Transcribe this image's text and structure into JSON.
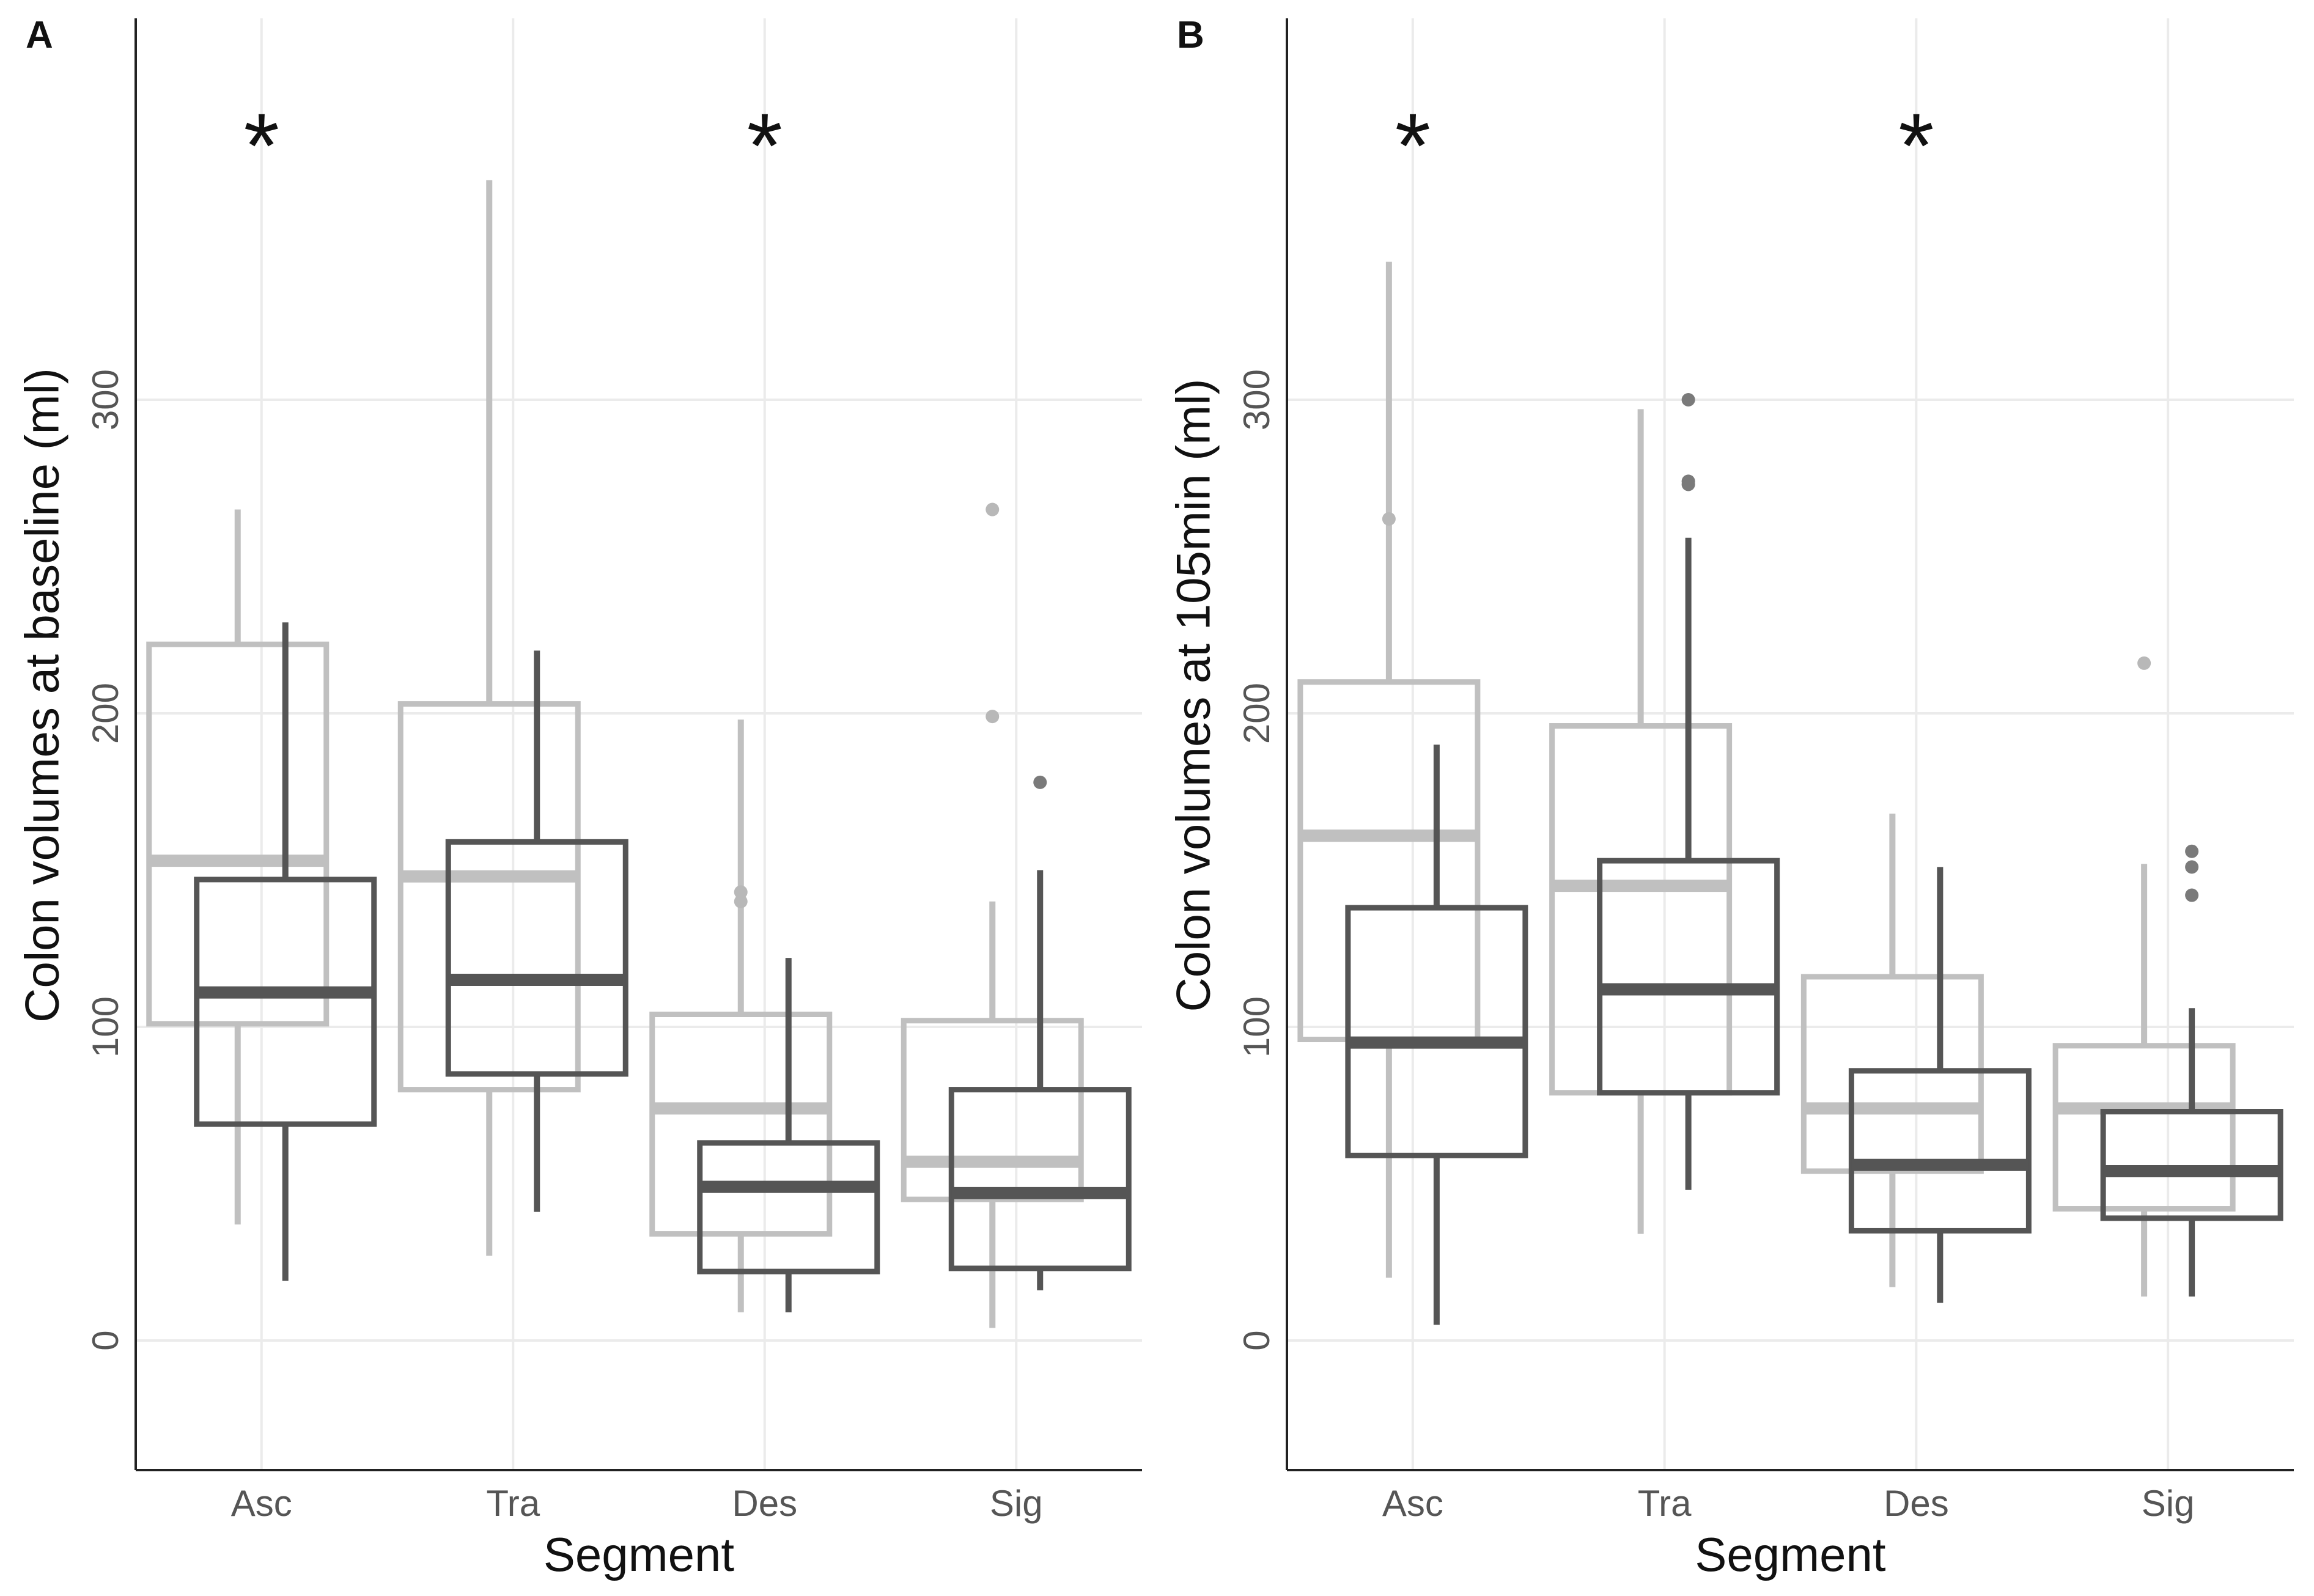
{
  "chart_data": [
    {
      "type": "box",
      "panel_label": "A",
      "xlabel": "Segment",
      "ylabel": "Colon volumes at baseline (ml)",
      "categories": [
        "Asc",
        "Tra",
        "Des",
        "Sig"
      ],
      "yticks": [
        0,
        100,
        200,
        300
      ],
      "ylim": [
        -40,
        420
      ],
      "grid": true,
      "significance": [
        "*",
        "",
        "*",
        ""
      ],
      "series": [
        {
          "color": "#c0c0c0",
          "boxes": [
            {
              "whisker_low": 37,
              "q1": 101,
              "median": 153,
              "q3": 222,
              "whisker_high": 265,
              "outliers": []
            },
            {
              "whisker_low": 27,
              "q1": 80,
              "median": 148,
              "q3": 203,
              "whisker_high": 370,
              "outliers": []
            },
            {
              "whisker_low": 9,
              "q1": 34,
              "median": 74,
              "q3": 104,
              "whisker_high": 198,
              "outliers": [
                143,
                140
              ]
            },
            {
              "whisker_low": 4,
              "q1": 45,
              "median": 57,
              "q3": 102,
              "whisker_high": 140,
              "outliers": [
                265,
                199
              ]
            }
          ]
        },
        {
          "color": "#555555",
          "boxes": [
            {
              "whisker_low": 19,
              "q1": 69,
              "median": 111,
              "q3": 147,
              "whisker_high": 229,
              "outliers": []
            },
            {
              "whisker_low": 41,
              "q1": 85,
              "median": 115,
              "q3": 159,
              "whisker_high": 220,
              "outliers": []
            },
            {
              "whisker_low": 9,
              "q1": 22,
              "median": 49,
              "q3": 63,
              "whisker_high": 122,
              "outliers": []
            },
            {
              "whisker_low": 16,
              "q1": 23,
              "median": 47,
              "q3": 80,
              "whisker_high": 150,
              "outliers": [
                178
              ]
            }
          ]
        }
      ]
    },
    {
      "type": "box",
      "panel_label": "B",
      "xlabel": "Segment",
      "ylabel": "Colon volumes at 105min (ml)",
      "categories": [
        "Asc",
        "Tra",
        "Des",
        "Sig"
      ],
      "yticks": [
        0,
        100,
        200,
        300
      ],
      "ylim": [
        -40,
        420
      ],
      "grid": true,
      "significance": [
        "*",
        "",
        "*",
        ""
      ],
      "series": [
        {
          "color": "#c0c0c0",
          "boxes": [
            {
              "whisker_low": 20,
              "q1": 96,
              "median": 161,
              "q3": 210,
              "whisker_high": 344,
              "outliers": [
                262
              ]
            },
            {
              "whisker_low": 34,
              "q1": 79,
              "median": 145,
              "q3": 196,
              "whisker_high": 297,
              "outliers": []
            },
            {
              "whisker_low": 17,
              "q1": 54,
              "median": 74,
              "q3": 116,
              "whisker_high": 168,
              "outliers": []
            },
            {
              "whisker_low": 14,
              "q1": 42,
              "median": 74,
              "q3": 94,
              "whisker_high": 152,
              "outliers": [
                216
              ]
            }
          ]
        },
        {
          "color": "#555555",
          "boxes": [
            {
              "whisker_low": 5,
              "q1": 59,
              "median": 95,
              "q3": 138,
              "whisker_high": 190,
              "outliers": []
            },
            {
              "whisker_low": 48,
              "q1": 79,
              "median": 112,
              "q3": 153,
              "whisker_high": 256,
              "outliers": [
                300,
                274,
                273
              ]
            },
            {
              "whisker_low": 12,
              "q1": 35,
              "median": 56,
              "q3": 86,
              "whisker_high": 151,
              "outliers": []
            },
            {
              "whisker_low": 14,
              "q1": 39,
              "median": 54,
              "q3": 73,
              "whisker_high": 106,
              "outliers": [
                156,
                151,
                142
              ]
            }
          ]
        }
      ]
    }
  ]
}
